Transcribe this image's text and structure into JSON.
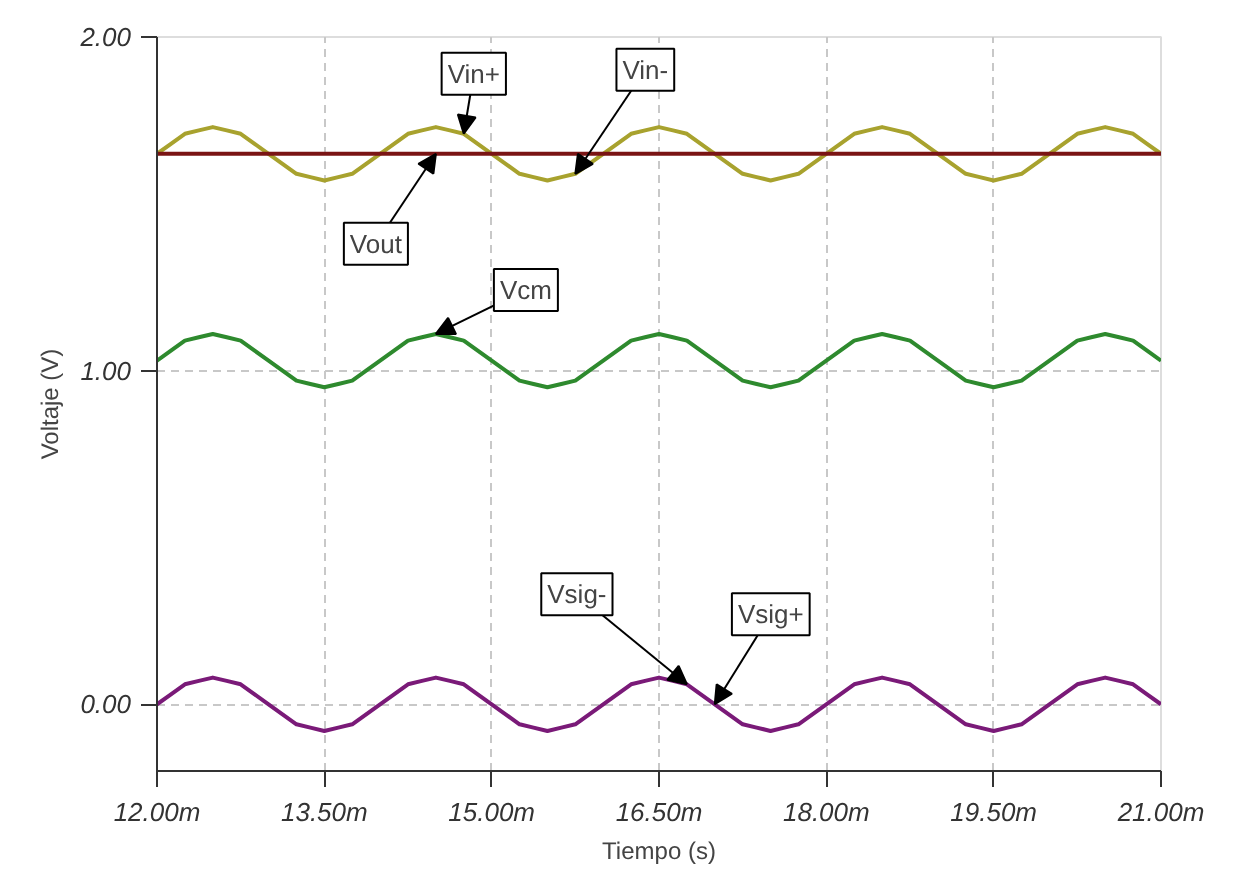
{
  "chart_data": {
    "type": "line",
    "xlabel": "Tiempo (s)",
    "ylabel": "Voltaje (V)",
    "x": [
      12.0,
      12.125,
      12.25,
      12.375,
      12.5,
      12.625,
      12.75,
      12.875,
      13.0,
      13.125,
      13.25,
      13.375,
      13.5,
      13.625,
      13.75,
      13.875,
      14.0,
      14.125,
      14.25,
      14.375,
      14.5,
      14.625,
      14.75,
      14.875,
      15.0,
      15.125,
      15.25,
      15.375,
      15.5,
      15.625,
      15.75,
      15.875,
      16.0,
      16.125,
      16.25,
      16.375,
      16.5,
      16.625,
      16.75,
      16.875,
      17.0,
      17.125,
      17.25,
      17.375,
      17.5,
      17.625,
      17.75,
      17.875,
      18.0,
      18.125,
      18.25,
      18.375,
      18.5,
      18.625,
      18.75,
      18.875,
      19.0,
      19.125,
      19.25,
      19.375,
      19.5,
      19.625,
      19.75,
      19.875,
      20.0,
      20.125,
      20.25,
      20.375,
      20.5,
      20.625,
      20.75,
      20.875,
      21.0
    ],
    "series": [
      {
        "color": "#a8a22e",
        "values": [
          1.65,
          1.68,
          1.71,
          1.72,
          1.73,
          1.72,
          1.71,
          1.68,
          1.65,
          1.62,
          1.59,
          1.58,
          1.57,
          1.58,
          1.59,
          1.62,
          1.65,
          1.68,
          1.71,
          1.72,
          1.73,
          1.72,
          1.71,
          1.68,
          1.65,
          1.62,
          1.59,
          1.58,
          1.57,
          1.58,
          1.59,
          1.62,
          1.65,
          1.68,
          1.71,
          1.72,
          1.73,
          1.72,
          1.71,
          1.68,
          1.65,
          1.62,
          1.59,
          1.58,
          1.57,
          1.58,
          1.59,
          1.62,
          1.65,
          1.68,
          1.71,
          1.72,
          1.73,
          1.72,
          1.71,
          1.68,
          1.65,
          1.62,
          1.59,
          1.58,
          1.57,
          1.58,
          1.59,
          1.62,
          1.65,
          1.68,
          1.71,
          1.72,
          1.73,
          1.72,
          1.71,
          1.68,
          1.65
        ]
      },
      {
        "color": "#7a1414",
        "x": [
          12.0,
          21.0
        ],
        "values": [
          1.65,
          1.65
        ]
      },
      {
        "color": "#2e8a2e",
        "values": [
          1.03,
          1.06,
          1.09,
          1.1,
          1.11,
          1.1,
          1.09,
          1.06,
          1.03,
          1.0,
          0.97,
          0.96,
          0.95,
          0.96,
          0.97,
          1.0,
          1.03,
          1.06,
          1.09,
          1.1,
          1.11,
          1.1,
          1.09,
          1.06,
          1.03,
          1.0,
          0.97,
          0.96,
          0.95,
          0.96,
          0.97,
          1.0,
          1.03,
          1.06,
          1.09,
          1.1,
          1.11,
          1.1,
          1.09,
          1.06,
          1.03,
          1.0,
          0.97,
          0.96,
          0.95,
          0.96,
          0.97,
          1.0,
          1.03,
          1.06,
          1.09,
          1.1,
          1.11,
          1.1,
          1.09,
          1.06,
          1.03,
          1.0,
          0.97,
          0.96,
          0.95,
          0.96,
          0.97,
          1.0,
          1.03,
          1.06,
          1.09,
          1.1,
          1.11,
          1.1,
          1.09,
          1.06,
          1.03
        ]
      },
      {
        "color": "#7a1a78",
        "values": [
          0.0,
          0.03,
          0.06,
          0.07,
          0.08,
          0.07,
          0.06,
          0.03,
          0.0,
          -0.03,
          -0.06,
          -0.07,
          -0.08,
          -0.07,
          -0.06,
          -0.03,
          0.0,
          0.03,
          0.06,
          0.07,
          0.08,
          0.07,
          0.06,
          0.03,
          0.0,
          -0.03,
          -0.06,
          -0.07,
          -0.08,
          -0.07,
          -0.06,
          -0.03,
          0.0,
          0.03,
          0.06,
          0.07,
          0.08,
          0.07,
          0.06,
          0.03,
          0.0,
          -0.03,
          -0.06,
          -0.07,
          -0.08,
          -0.07,
          -0.06,
          -0.03,
          0.0,
          0.03,
          0.06,
          0.07,
          0.08,
          0.07,
          0.06,
          0.03,
          0.0,
          -0.03,
          -0.06,
          -0.07,
          -0.08,
          -0.07,
          -0.06,
          -0.03,
          0.0,
          0.03,
          0.06,
          0.07,
          0.08,
          0.07,
          0.06,
          0.03,
          0.0
        ]
      }
    ],
    "annotations": [
      {
        "text": "Vin+",
        "x": 14.75,
        "y": 1.71
      },
      {
        "text": "Vin-",
        "x": 15.75,
        "y": 1.59
      },
      {
        "text": "Vout",
        "x": 14.5,
        "y": 1.65
      },
      {
        "text": "Vcm",
        "x": 14.5,
        "y": 1.11
      },
      {
        "text": "Vsig-",
        "x": 16.75,
        "y": 0.06
      },
      {
        "text": "Vsig+",
        "x": 17.0,
        "y": 0.0
      }
    ],
    "xlim": [
      12.0,
      21.0
    ],
    "xticks": [
      {
        "value": 12.0,
        "label": "12.00m"
      },
      {
        "value": 13.5,
        "label": "13.50m"
      },
      {
        "value": 15.0,
        "label": "15.00m"
      },
      {
        "value": 16.5,
        "label": "16.50m"
      },
      {
        "value": 18.0,
        "label": "18.00m"
      },
      {
        "value": 19.5,
        "label": "19.50m"
      },
      {
        "value": 21.0,
        "label": "21.00m"
      }
    ],
    "ylim": [
      -0.2,
      2.0
    ],
    "yticks": [
      {
        "value": 0.0,
        "label": "0.00"
      },
      {
        "value": 1.0,
        "label": "1.00"
      },
      {
        "value": 2.0,
        "label": "2.00"
      }
    ],
    "grid": true,
    "line_style": "solid"
  }
}
